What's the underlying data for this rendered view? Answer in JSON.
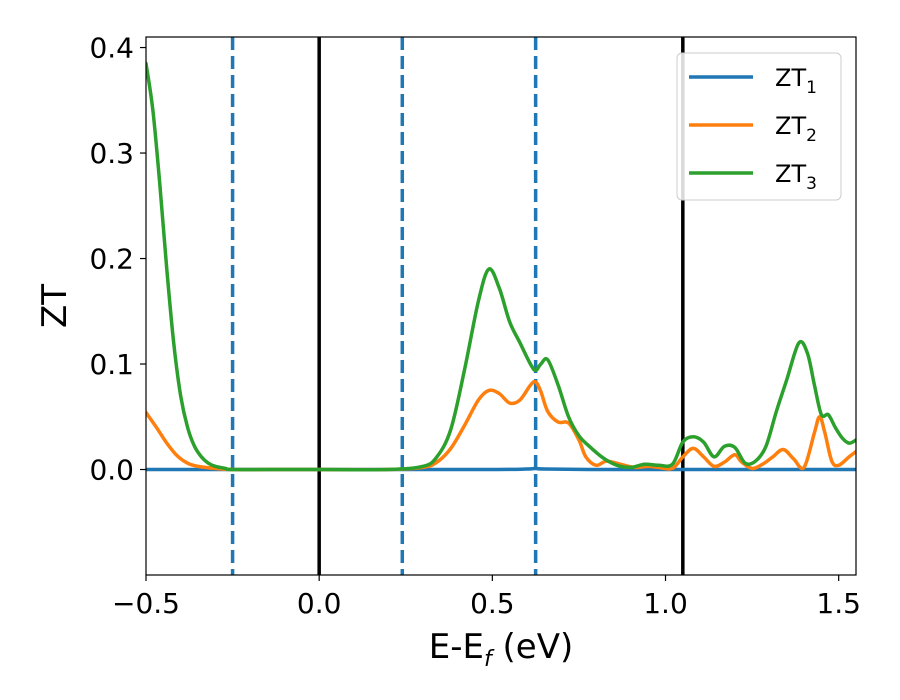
{
  "chart_data": {
    "type": "line",
    "xlabel": "E-E",
    "xlabel_sub": "f",
    "xlabel_unit": " (eV)",
    "ylabel": "ZT",
    "xlim": [
      -0.5,
      1.55
    ],
    "ylim": [
      -0.1,
      0.41
    ],
    "xticks": [
      -0.5,
      0.0,
      0.5,
      1.0,
      1.5
    ],
    "xtick_labels": [
      "−0.5",
      "0.0",
      "0.5",
      "1.0",
      "1.5"
    ],
    "yticks": [
      0.0,
      0.1,
      0.2,
      0.3,
      0.4
    ],
    "ytick_labels": [
      "0.0",
      "0.1",
      "0.2",
      "0.3",
      "0.4"
    ],
    "grid": false,
    "legend_position": "top-right",
    "vertical_lines": [
      {
        "x": -0.25,
        "style": "dashed",
        "color": "#1f77b4"
      },
      {
        "x": 0.0,
        "style": "solid",
        "color": "#000000"
      },
      {
        "x": 0.24,
        "style": "dashed",
        "color": "#1f77b4"
      },
      {
        "x": 0.625,
        "style": "dashed",
        "color": "#1f77b4"
      },
      {
        "x": 1.05,
        "style": "solid",
        "color": "#000000"
      }
    ],
    "series": [
      {
        "name": "ZT",
        "name_sub": "1",
        "color": "#1f77b4",
        "x": [
          -0.5,
          0.0,
          0.5,
          0.6,
          0.625,
          0.65,
          0.8,
          1.0,
          1.2,
          1.55
        ],
        "y": [
          0.0,
          0.0,
          0.0,
          0.0005,
          0.001,
          0.0005,
          0.0,
          0.0,
          0.0,
          0.0
        ]
      },
      {
        "name": "ZT",
        "name_sub": "2",
        "color": "#ff7f0e",
        "x": [
          -0.5,
          -0.47,
          -0.44,
          -0.41,
          -0.38,
          -0.35,
          -0.3,
          -0.25,
          -0.1,
          0.0,
          0.2,
          0.3,
          0.34,
          0.38,
          0.42,
          0.46,
          0.49,
          0.52,
          0.55,
          0.58,
          0.61,
          0.625,
          0.64,
          0.66,
          0.69,
          0.72,
          0.75,
          0.77,
          0.8,
          0.83,
          0.87,
          0.91,
          0.95,
          0.98,
          1.02,
          1.05,
          1.08,
          1.11,
          1.14,
          1.17,
          1.2,
          1.22,
          1.25,
          1.28,
          1.31,
          1.34,
          1.37,
          1.4,
          1.43,
          1.445,
          1.46,
          1.48,
          1.5,
          1.53,
          1.55
        ],
        "y": [
          0.054,
          0.04,
          0.025,
          0.013,
          0.006,
          0.003,
          0.001,
          0.0,
          0.0,
          0.0,
          0.0,
          0.002,
          0.007,
          0.02,
          0.042,
          0.066,
          0.075,
          0.072,
          0.063,
          0.066,
          0.08,
          0.083,
          0.074,
          0.055,
          0.045,
          0.044,
          0.028,
          0.012,
          0.004,
          0.008,
          0.005,
          0.002,
          0.003,
          0.002,
          0.001,
          0.012,
          0.02,
          0.012,
          0.003,
          0.007,
          0.014,
          0.007,
          0.001,
          0.005,
          0.012,
          0.019,
          0.01,
          0.002,
          0.035,
          0.05,
          0.035,
          0.008,
          0.004,
          0.012,
          0.017
        ]
      },
      {
        "name": "ZT",
        "name_sub": "3",
        "color": "#2ca02c",
        "x": [
          -0.5,
          -0.48,
          -0.46,
          -0.44,
          -0.42,
          -0.4,
          -0.38,
          -0.36,
          -0.34,
          -0.32,
          -0.3,
          -0.27,
          -0.25,
          -0.1,
          0.0,
          0.2,
          0.3,
          0.34,
          0.38,
          0.42,
          0.46,
          0.49,
          0.52,
          0.55,
          0.58,
          0.61,
          0.625,
          0.64,
          0.66,
          0.69,
          0.72,
          0.75,
          0.78,
          0.82,
          0.86,
          0.9,
          0.94,
          0.98,
          1.02,
          1.05,
          1.08,
          1.11,
          1.14,
          1.17,
          1.2,
          1.23,
          1.26,
          1.29,
          1.32,
          1.35,
          1.385,
          1.41,
          1.43,
          1.45,
          1.47,
          1.49,
          1.51,
          1.53,
          1.55
        ],
        "y": [
          0.385,
          0.34,
          0.27,
          0.19,
          0.12,
          0.07,
          0.04,
          0.022,
          0.012,
          0.006,
          0.003,
          0.001,
          0.0,
          0.0,
          0.0,
          0.0,
          0.003,
          0.012,
          0.038,
          0.095,
          0.16,
          0.19,
          0.172,
          0.14,
          0.12,
          0.1,
          0.094,
          0.1,
          0.104,
          0.08,
          0.05,
          0.032,
          0.022,
          0.011,
          0.004,
          0.002,
          0.005,
          0.004,
          0.005,
          0.026,
          0.031,
          0.026,
          0.012,
          0.022,
          0.021,
          0.006,
          0.008,
          0.022,
          0.055,
          0.085,
          0.12,
          0.11,
          0.08,
          0.052,
          0.052,
          0.04,
          0.03,
          0.025,
          0.028
        ]
      }
    ]
  }
}
